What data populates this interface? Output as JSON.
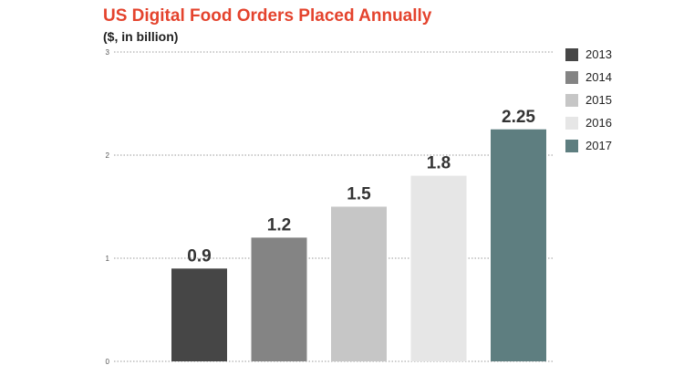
{
  "chart_data": {
    "type": "bar",
    "title": "US Digital Food Orders Placed Annually",
    "subtitle": "($, in billion)",
    "categories": [
      "2013",
      "2014",
      "2015",
      "2016",
      "2017"
    ],
    "values": [
      0.9,
      1.2,
      1.5,
      1.8,
      2.25
    ],
    "value_labels": [
      "0.9",
      "1.2",
      "1.5",
      "1.8",
      "2.25"
    ],
    "colors": [
      "#464646",
      "#848484",
      "#c6c6c6",
      "#e6e6e6",
      "#5e7e80"
    ],
    "ylim": [
      0,
      3
    ],
    "yticks": [
      0,
      1,
      2,
      3
    ],
    "ytick_labels": [
      "0",
      "1",
      "2",
      "3"
    ],
    "grid": true,
    "legend": "right",
    "xlabel": "",
    "ylabel": ""
  }
}
